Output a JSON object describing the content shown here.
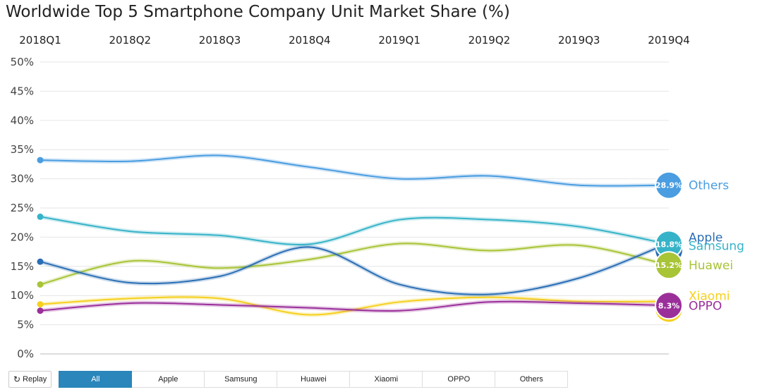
{
  "title": "Worldwide Top 5 Smartphone Company Unit Market Share (%)",
  "chart_data": {
    "type": "line",
    "title": "Worldwide Top 5 Smartphone Company Unit Market Share (%)",
    "categories": [
      "2018Q1",
      "2018Q2",
      "2018Q3",
      "2018Q4",
      "2019Q1",
      "2019Q2",
      "2019Q3",
      "2019Q4"
    ],
    "y_ticks": [
      "0%",
      "5%",
      "10%",
      "15%",
      "20%",
      "25%",
      "30%",
      "35%",
      "40%",
      "45%",
      "50%"
    ],
    "ylim": [
      0,
      50
    ],
    "xlabel": "",
    "ylabel": "",
    "series": [
      {
        "name": "Others",
        "color": "#4a9de0",
        "values": [
          33.2,
          33.0,
          34.0,
          32.0,
          30.0,
          30.5,
          28.9,
          28.9
        ],
        "badge": "28.9%"
      },
      {
        "name": "Samsung",
        "color": "#36b3c8",
        "values": [
          23.5,
          21.0,
          20.3,
          18.8,
          23.0,
          23.0,
          21.8,
          18.8
        ],
        "badge": "18.8%"
      },
      {
        "name": "Apple",
        "color": "#2a6eb5",
        "values": [
          15.8,
          12.2,
          13.3,
          18.3,
          11.9,
          10.2,
          13.0,
          19.0
        ],
        "badge": ""
      },
      {
        "name": "Huawei",
        "color": "#a8c437",
        "values": [
          11.9,
          15.9,
          14.7,
          16.2,
          18.9,
          17.7,
          18.6,
          15.2
        ],
        "badge": "15.2%"
      },
      {
        "name": "Xiaomi",
        "color": "#f5d01e",
        "values": [
          8.5,
          9.5,
          9.5,
          6.7,
          8.9,
          9.7,
          9.0,
          9.0
        ],
        "badge": ""
      },
      {
        "name": "OPPO",
        "color": "#9b2f9a",
        "values": [
          7.4,
          8.7,
          8.4,
          7.9,
          7.4,
          8.9,
          8.7,
          8.3
        ],
        "badge": "8.3%"
      }
    ]
  },
  "controls": {
    "replay_label": "Replay",
    "filters": [
      "All",
      "Apple",
      "Samsung",
      "Huawei",
      "Xiaomi",
      "OPPO",
      "Others"
    ],
    "active_filter": "All"
  }
}
